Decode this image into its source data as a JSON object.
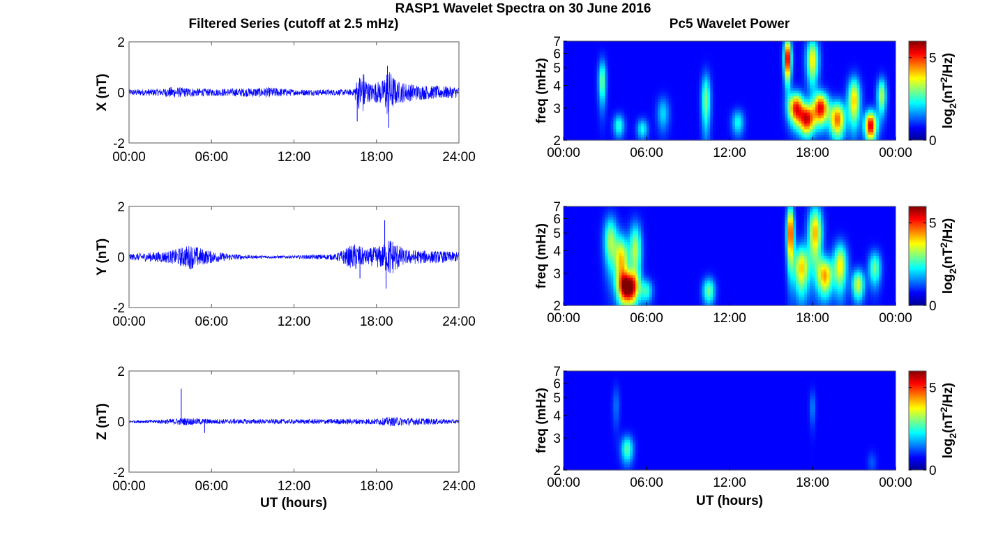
{
  "figure": {
    "title": "RASP1 Wavelet Spectra on 30 June 2016",
    "left_column_title": "Filtered Series (cutoff at 2.5 mHz)",
    "right_column_title": "Pc5 Wavelet Power",
    "x_label": "UT (hours)"
  },
  "chart_data": [
    {
      "type": "line",
      "panel": "X",
      "ylabel": "X (nT)",
      "ylim": [
        -2,
        2
      ],
      "yticks": [
        "-2",
        "0",
        "2"
      ],
      "xlim_hours": [
        0,
        24
      ],
      "xticks": [
        "00:00",
        "06:00",
        "12:00",
        "18:00",
        "24:00"
      ],
      "series_color": "#0000ff",
      "envelope": [
        {
          "t": 0,
          "a": 0.12
        },
        {
          "t": 2.5,
          "a": 0.15
        },
        {
          "t": 3,
          "a": 0.22
        },
        {
          "t": 6,
          "a": 0.14
        },
        {
          "t": 10.5,
          "a": 0.2
        },
        {
          "t": 12,
          "a": 0.12
        },
        {
          "t": 16.3,
          "a": 0.12
        },
        {
          "t": 16.6,
          "a": 0.55
        },
        {
          "t": 17.0,
          "a": 0.9
        },
        {
          "t": 17.5,
          "a": 0.35
        },
        {
          "t": 18.5,
          "a": 0.5
        },
        {
          "t": 18.8,
          "a": 1.0
        },
        {
          "t": 19.5,
          "a": 0.45
        },
        {
          "t": 21,
          "a": 0.3
        },
        {
          "t": 24,
          "a": 0.22
        }
      ],
      "spikes": [
        {
          "t": 16.6,
          "v": -1.15
        },
        {
          "t": 18.8,
          "v": 1.05
        },
        {
          "t": 18.9,
          "v": -1.4
        }
      ]
    },
    {
      "type": "line",
      "panel": "Y",
      "ylabel": "Y (nT)",
      "ylim": [
        -2,
        2
      ],
      "yticks": [
        "-2",
        "0",
        "2"
      ],
      "xlim_hours": [
        0,
        24
      ],
      "xticks": [
        "00:00",
        "06:00",
        "12:00",
        "18:00",
        "24:00"
      ],
      "series_color": "#0000ff",
      "envelope": [
        {
          "t": 0,
          "a": 0.12
        },
        {
          "t": 3,
          "a": 0.25
        },
        {
          "t": 4.5,
          "a": 0.5
        },
        {
          "t": 5.5,
          "a": 0.3
        },
        {
          "t": 7,
          "a": 0.15
        },
        {
          "t": 9,
          "a": 0.06
        },
        {
          "t": 12,
          "a": 0.06
        },
        {
          "t": 15,
          "a": 0.12
        },
        {
          "t": 16.5,
          "a": 0.55
        },
        {
          "t": 17.2,
          "a": 0.3
        },
        {
          "t": 18.5,
          "a": 0.5
        },
        {
          "t": 19,
          "a": 0.8
        },
        {
          "t": 20,
          "a": 0.3
        },
        {
          "t": 24,
          "a": 0.2
        }
      ],
      "spikes": [
        {
          "t": 16.8,
          "v": -0.85
        },
        {
          "t": 18.6,
          "v": 1.45
        },
        {
          "t": 18.7,
          "v": -1.25
        }
      ]
    },
    {
      "type": "line",
      "panel": "Z",
      "ylabel": "Z (nT)",
      "ylim": [
        -2,
        2
      ],
      "yticks": [
        "-2",
        "0",
        "2"
      ],
      "xlim_hours": [
        0,
        24
      ],
      "xticks": [
        "00:00",
        "06:00",
        "12:00",
        "18:00",
        "24:00"
      ],
      "series_color": "#0000ff",
      "envelope": [
        {
          "t": 0,
          "a": 0.05
        },
        {
          "t": 2,
          "a": 0.07
        },
        {
          "t": 4,
          "a": 0.15
        },
        {
          "t": 6,
          "a": 0.1
        },
        {
          "t": 12,
          "a": 0.09
        },
        {
          "t": 18,
          "a": 0.12
        },
        {
          "t": 19,
          "a": 0.18
        },
        {
          "t": 24,
          "a": 0.08
        }
      ],
      "spikes": [
        {
          "t": 3.8,
          "v": 1.3
        },
        {
          "t": 5.5,
          "v": -0.45
        }
      ]
    },
    {
      "type": "heatmap",
      "panel": "X power",
      "ylabel": "freq (mHz)",
      "yscale": "log",
      "ylim_mhz": [
        2,
        7
      ],
      "yticks": [
        "2",
        "3",
        "4",
        "5",
        "6",
        "7"
      ],
      "xlim_hours": [
        0,
        24
      ],
      "xticks": [
        "00:00",
        "06:00",
        "12:00",
        "18:00",
        "00:00"
      ],
      "colorbar": {
        "label": "log2(nT^2/Hz)",
        "range": [
          0,
          6
        ],
        "ticks": [
          "0",
          "5"
        ],
        "colormap": "jet"
      },
      "blobs": [
        {
          "t": 2.8,
          "f": 4.2,
          "amp": 2.5,
          "wt": 0.13,
          "wf": 1.2
        },
        {
          "t": 4.0,
          "f": 2.4,
          "amp": 2.0,
          "wt": 0.18,
          "wf": 0.35
        },
        {
          "t": 5.7,
          "f": 2.3,
          "amp": 1.8,
          "wt": 0.18,
          "wf": 0.3
        },
        {
          "t": 7.2,
          "f": 2.8,
          "amp": 1.5,
          "wt": 0.2,
          "wf": 0.6
        },
        {
          "t": 10.3,
          "f": 3.3,
          "amp": 2.6,
          "wt": 0.15,
          "wf": 1.2
        },
        {
          "t": 12.6,
          "f": 2.5,
          "amp": 1.8,
          "wt": 0.2,
          "wf": 0.4
        },
        {
          "t": 16.2,
          "f": 5.6,
          "amp": 5.8,
          "wt": 0.12,
          "wf": 1.5
        },
        {
          "t": 16.8,
          "f": 3.0,
          "amp": 5.0,
          "wt": 0.25,
          "wf": 0.6
        },
        {
          "t": 17.6,
          "f": 2.6,
          "amp": 5.0,
          "wt": 0.25,
          "wf": 0.5
        },
        {
          "t": 18.0,
          "f": 5.5,
          "amp": 3.5,
          "wt": 0.2,
          "wf": 1.6
        },
        {
          "t": 18.6,
          "f": 3.0,
          "amp": 5.2,
          "wt": 0.25,
          "wf": 0.6
        },
        {
          "t": 19.8,
          "f": 2.6,
          "amp": 4.5,
          "wt": 0.25,
          "wf": 0.6
        },
        {
          "t": 21.0,
          "f": 3.3,
          "amp": 3.8,
          "wt": 0.2,
          "wf": 1.0
        },
        {
          "t": 22.2,
          "f": 2.4,
          "amp": 5.5,
          "wt": 0.2,
          "wf": 0.45
        },
        {
          "t": 23.0,
          "f": 3.5,
          "amp": 3.0,
          "wt": 0.15,
          "wf": 0.8
        }
      ]
    },
    {
      "type": "heatmap",
      "panel": "Y power",
      "ylabel": "freq (mHz)",
      "yscale": "log",
      "ylim_mhz": [
        2,
        7
      ],
      "yticks": [
        "2",
        "3",
        "4",
        "5",
        "6",
        "7"
      ],
      "xlim_hours": [
        0,
        24
      ],
      "xticks": [
        "00:00",
        "06:00",
        "12:00",
        "18:00",
        "00:00"
      ],
      "colorbar": {
        "label": "log2(nT^2/Hz)",
        "range": [
          0,
          6
        ],
        "ticks": [
          "0",
          "5"
        ],
        "colormap": "jet"
      },
      "blobs": [
        {
          "t": 3.4,
          "f": 4.5,
          "amp": 2.8,
          "wt": 0.22,
          "wf": 1.5
        },
        {
          "t": 4.2,
          "f": 3.5,
          "amp": 3.8,
          "wt": 0.22,
          "wf": 1.2
        },
        {
          "t": 4.7,
          "f": 2.5,
          "amp": 6.0,
          "wt": 0.3,
          "wf": 0.5
        },
        {
          "t": 5.2,
          "f": 4.0,
          "amp": 3.0,
          "wt": 0.2,
          "wf": 1.5
        },
        {
          "t": 6.0,
          "f": 2.4,
          "amp": 2.0,
          "wt": 0.2,
          "wf": 0.35
        },
        {
          "t": 10.5,
          "f": 2.4,
          "amp": 2.5,
          "wt": 0.2,
          "wf": 0.4
        },
        {
          "t": 16.4,
          "f": 5.0,
          "amp": 5.0,
          "wt": 0.12,
          "wf": 1.8
        },
        {
          "t": 17.2,
          "f": 3.2,
          "amp": 3.8,
          "wt": 0.25,
          "wf": 1.0
        },
        {
          "t": 18.2,
          "f": 5.0,
          "amp": 4.0,
          "wt": 0.22,
          "wf": 1.8
        },
        {
          "t": 18.9,
          "f": 2.9,
          "amp": 4.0,
          "wt": 0.25,
          "wf": 0.7
        },
        {
          "t": 20.0,
          "f": 3.3,
          "amp": 3.5,
          "wt": 0.22,
          "wf": 1.0
        },
        {
          "t": 21.3,
          "f": 2.6,
          "amp": 3.2,
          "wt": 0.2,
          "wf": 0.5
        },
        {
          "t": 22.5,
          "f": 3.2,
          "amp": 2.5,
          "wt": 0.2,
          "wf": 0.7
        }
      ]
    },
    {
      "type": "heatmap",
      "panel": "Z power",
      "ylabel": "freq (mHz)",
      "yscale": "log",
      "ylim_mhz": [
        2,
        7
      ],
      "yticks": [
        "2",
        "3",
        "4",
        "5",
        "6",
        "7"
      ],
      "xlim_hours": [
        0,
        24
      ],
      "xticks": [
        "00:00",
        "06:00",
        "12:00",
        "18:00",
        "00:00"
      ],
      "colorbar": {
        "label": "log2(nT^2/Hz)",
        "range": [
          0,
          6
        ],
        "ticks": [
          "0",
          "5"
        ],
        "colormap": "jet"
      },
      "blobs": [
        {
          "t": 4.6,
          "f": 2.6,
          "amp": 2.3,
          "wt": 0.2,
          "wf": 0.45
        },
        {
          "t": 3.8,
          "f": 4.5,
          "amp": 0.8,
          "wt": 0.12,
          "wf": 1.2
        },
        {
          "t": 18.0,
          "f": 4.4,
          "amp": 0.9,
          "wt": 0.1,
          "wf": 1.0
        },
        {
          "t": 22.3,
          "f": 2.2,
          "amp": 0.6,
          "wt": 0.15,
          "wf": 0.3
        }
      ]
    }
  ]
}
